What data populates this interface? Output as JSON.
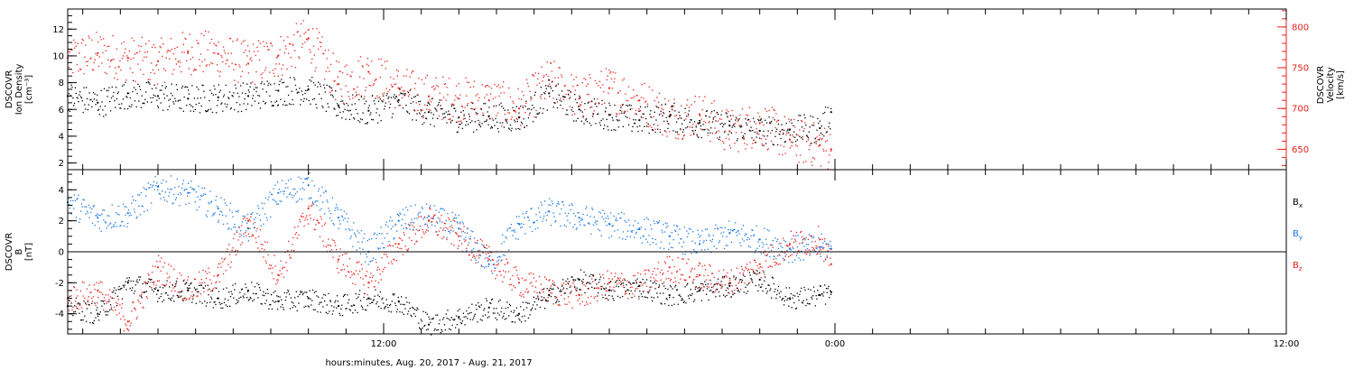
{
  "xaxis": {
    "label": "hours:minutes, Aug. 20, 2017 - Aug. 21, 2017",
    "ticks": [
      {
        "hours": 12,
        "label": "12:00"
      },
      {
        "hours": 24,
        "label": "0:00"
      },
      {
        "hours": 36,
        "label": "12:00"
      }
    ],
    "range_hours": [
      3.6,
      36
    ]
  },
  "colors": {
    "black": "#000000",
    "red": "#e8201a",
    "blue": "#1a78e0",
    "axis": "#000000"
  },
  "chart_data": [
    {
      "type": "scatter",
      "title": "",
      "ylabel_lines": [
        "DSCOVR",
        "Ion Density",
        "[cm⁻³]"
      ],
      "y2label_lines": [
        "DSCOVR",
        "Velocity",
        "[km/s]"
      ],
      "ylim": [
        1.5,
        13.5
      ],
      "yticks": [
        2,
        4,
        6,
        8,
        10,
        12
      ],
      "y2lim": [
        625,
        822
      ],
      "y2ticks": [
        650,
        700,
        750,
        800
      ],
      "series": [
        {
          "key": "density",
          "axis": "left",
          "color": "black",
          "x": [
            3.6,
            4.4,
            5.2,
            6.0,
            6.8,
            7.6,
            8.4,
            9.2,
            10.0,
            10.8,
            11.6,
            12.4,
            13.2,
            14.0,
            14.8,
            15.6,
            16.4,
            17.2,
            18.0,
            18.8,
            19.6,
            20.4,
            21.2,
            22.0,
            22.8,
            23.6,
            23.9
          ],
          "y": [
            7.0,
            6.5,
            7.2,
            7.0,
            6.8,
            6.9,
            7.0,
            7.4,
            7.5,
            6.3,
            5.9,
            6.7,
            5.8,
            5.4,
            5.5,
            5.4,
            7.2,
            6.0,
            5.6,
            5.2,
            5.5,
            5.0,
            4.8,
            4.4,
            4.5,
            4.6,
            5.8
          ]
        },
        {
          "key": "velocity",
          "axis": "right",
          "color": "red",
          "x": [
            3.6,
            4.4,
            5.2,
            6.0,
            6.8,
            7.6,
            8.4,
            9.2,
            10.0,
            10.8,
            11.6,
            12.4,
            13.2,
            14.0,
            14.8,
            15.6,
            16.4,
            17.2,
            18.0,
            18.8,
            19.6,
            20.4,
            21.2,
            22.0,
            22.8,
            23.6,
            23.9
          ],
          "y": [
            762,
            768,
            762,
            758,
            770,
            767,
            755,
            765,
            786,
            730,
            745,
            725,
            715,
            712,
            710,
            700,
            735,
            712,
            725,
            710,
            690,
            693,
            672,
            682,
            662,
            655,
            650
          ]
        }
      ]
    },
    {
      "type": "scatter",
      "title": "",
      "ylabel_lines": [
        "DSCOVR",
        "B",
        "[nT]"
      ],
      "ylim": [
        -5.3,
        5.3
      ],
      "yticks": [
        -4,
        -2,
        0,
        2,
        4
      ],
      "zero_line": true,
      "legend": [
        {
          "label": "B",
          "sub": "x",
          "color": "black"
        },
        {
          "label": "B",
          "sub": "y",
          "color": "blue"
        },
        {
          "label": "B",
          "sub": "z",
          "color": "red"
        }
      ],
      "series": [
        {
          "key": "bx",
          "color": "black",
          "x": [
            3.6,
            4.4,
            5.2,
            6.0,
            6.8,
            7.6,
            8.4,
            9.2,
            10.0,
            10.8,
            11.6,
            12.4,
            13.2,
            14.0,
            14.8,
            15.6,
            16.4,
            17.2,
            18.0,
            18.8,
            19.6,
            20.4,
            21.2,
            22.0,
            22.8,
            23.6,
            23.9
          ],
          "y": [
            -3.5,
            -4.0,
            -2.0,
            -2.5,
            -2.5,
            -3.0,
            -2.5,
            -3.2,
            -3.0,
            -3.5,
            -3.0,
            -3.2,
            -4.7,
            -4.2,
            -3.6,
            -4.0,
            -2.8,
            -1.8,
            -2.5,
            -2.2,
            -2.8,
            -2.5,
            -2.2,
            -1.8,
            -3.0,
            -2.8,
            -2.6
          ]
        },
        {
          "key": "by",
          "color": "blue",
          "x": [
            3.6,
            4.4,
            5.2,
            6.0,
            6.8,
            7.6,
            8.4,
            9.2,
            10.0,
            10.8,
            11.6,
            12.4,
            13.2,
            14.0,
            14.8,
            15.6,
            16.4,
            17.2,
            18.0,
            18.8,
            19.6,
            20.4,
            21.2,
            22.0,
            22.8,
            23.6,
            23.9
          ],
          "y": [
            3.2,
            2.2,
            2.5,
            4.2,
            3.8,
            2.8,
            1.5,
            3.8,
            4.3,
            2.2,
            0.0,
            2.0,
            2.3,
            1.5,
            -0.8,
            1.8,
            2.6,
            2.2,
            1.8,
            1.5,
            1.0,
            0.5,
            1.2,
            0.8,
            0.2,
            0.3,
            0.2
          ]
        },
        {
          "key": "bz",
          "color": "red",
          "x": [
            3.6,
            4.4,
            5.2,
            6.0,
            6.8,
            7.6,
            8.4,
            9.2,
            10.0,
            10.8,
            11.6,
            12.4,
            13.2,
            14.0,
            14.8,
            15.6,
            16.4,
            17.2,
            18.0,
            18.8,
            19.6,
            20.4,
            21.2,
            22.0,
            22.8,
            23.6,
            23.9
          ],
          "y": [
            -3.0,
            -2.5,
            -4.5,
            -1.0,
            -2.5,
            -1.5,
            2.0,
            -1.5,
            2.8,
            -0.5,
            -2.0,
            0.5,
            2.0,
            1.0,
            -0.5,
            -2.0,
            -2.5,
            -2.8,
            -2.0,
            -2.2,
            -1.0,
            -1.5,
            -2.0,
            -0.8,
            0.5,
            0.8,
            -0.8
          ]
        }
      ]
    }
  ]
}
